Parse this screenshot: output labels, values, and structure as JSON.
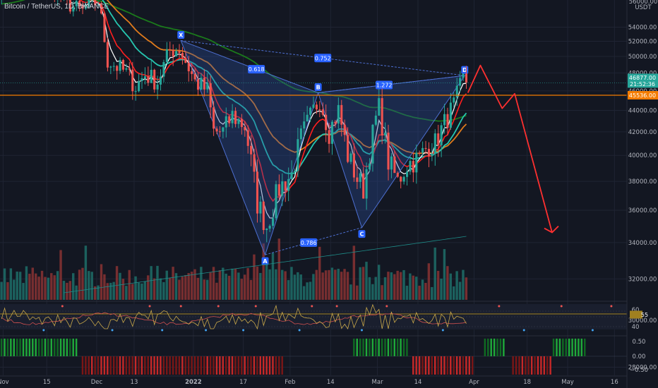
{
  "header": {
    "title": "Bitcoin / TetherUS, 1D, BINANCE"
  },
  "price_axis": {
    "unit": "USDT",
    "top_label": "56000.00",
    "ticks": [
      "54000.00",
      "52000.00",
      "50000.00",
      "48000.00",
      "46000.00",
      "44000.00",
      "42000.00",
      "40000.00",
      "38000.00",
      "36000.00",
      "34000.00",
      "32000.00",
      "30000.00",
      "28000.00"
    ],
    "last_price": "46877.00",
    "countdown": "21:52:36",
    "level_price": "45536.00"
  },
  "rsi_axis": {
    "ticks": [
      "60",
      "55",
      "40"
    ]
  },
  "osc_axis": {
    "ticks": [
      "0.50",
      "0.00",
      "−0.50"
    ]
  },
  "time_axis": {
    "ticks": [
      "Nov",
      "15",
      "Dec",
      "13",
      "2022",
      "17",
      "Feb",
      "14",
      "Mar",
      "14",
      "Apr",
      "18",
      "May",
      "16"
    ]
  },
  "pattern": {
    "points": [
      "X",
      "A",
      "B",
      "C",
      "D"
    ],
    "ratios": [
      "0.618",
      "0.752",
      "0.786",
      "1.272"
    ]
  },
  "colors": {
    "background": "#131722",
    "up": "#26a69a",
    "down": "#ef5350",
    "ema_fast": "#ffffff",
    "ema_red": "#ff1f1f",
    "ema_teal": "#26c6b0",
    "ema_orange": "#e07b1c",
    "ema_green": "#1b7a1b",
    "pattern_fill": "#2a4d9c",
    "level_line": "#f57c00",
    "projection": "#ff3030"
  },
  "chart_data": {
    "type": "candlestick",
    "title": "Bitcoin / TetherUS, 1D, BINANCE",
    "y_unit": "USDT",
    "ylim": [
      27000,
      56000
    ],
    "x_range": [
      "2021-10-31",
      "2022-05-20"
    ],
    "last_price": 46877,
    "horizontal_level": 45536,
    "harmonic_points": [
      {
        "label": "X",
        "date": "2021-12-28",
        "price": 52100
      },
      {
        "label": "A",
        "date": "2022-01-24",
        "price": 33300
      },
      {
        "label": "B",
        "date": "2022-02-10",
        "price": 45800
      },
      {
        "label": "C",
        "date": "2022-02-24",
        "price": 34900
      },
      {
        "label": "D",
        "date": "2022-03-29",
        "price": 47700
      }
    ],
    "ratios": {
      "XA_B": 0.618,
      "XD": 0.752,
      "AC": 0.786,
      "BD": 1.272
    },
    "projection_path": [
      {
        "date": "2022-03-30",
        "price": 45800
      },
      {
        "date": "2022-04-03",
        "price": 48900
      },
      {
        "date": "2022-04-10",
        "price": 44200
      },
      {
        "date": "2022-04-14",
        "price": 45700
      },
      {
        "date": "2022-04-26",
        "price": 34600
      }
    ],
    "grid": true
  }
}
